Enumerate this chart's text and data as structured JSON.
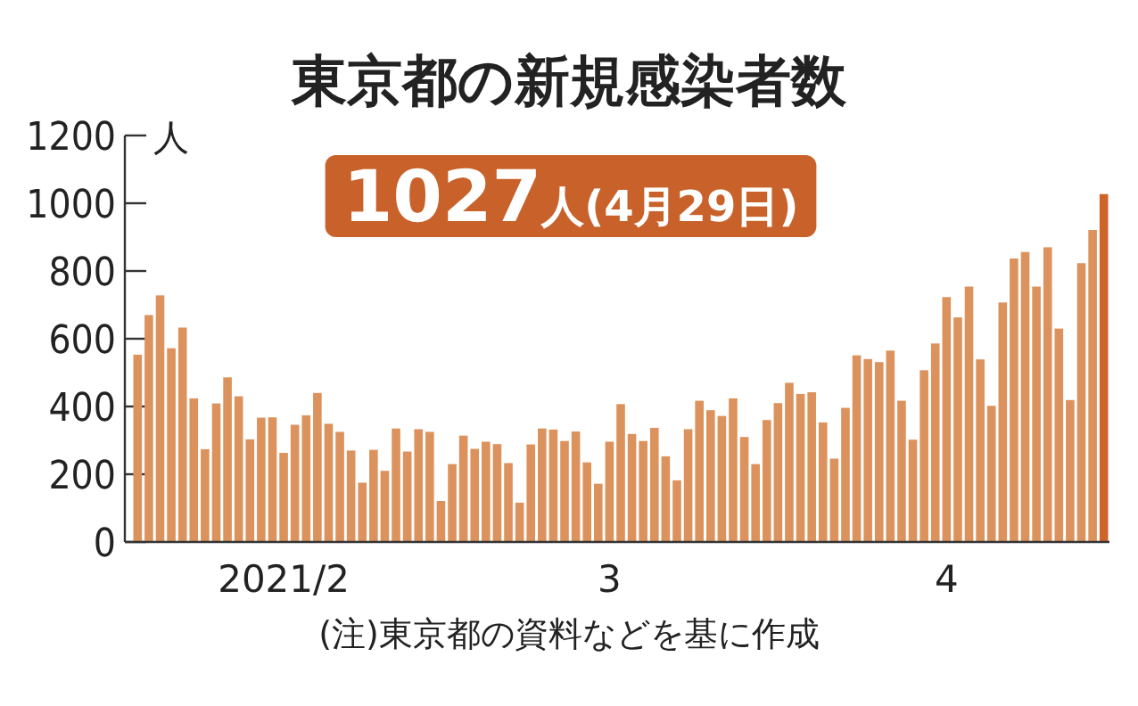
{
  "chart_data": {
    "type": "bar",
    "title": "東京都の新規感染者数",
    "ylabel": "人",
    "categories": [
      null,
      null,
      null,
      null,
      null,
      null,
      null,
      null,
      null,
      null,
      null,
      null,
      null,
      "2021/2",
      null,
      null,
      null,
      null,
      null,
      null,
      null,
      null,
      null,
      null,
      null,
      null,
      null,
      null,
      null,
      null,
      null,
      null,
      null,
      null,
      null,
      null,
      null,
      null,
      null,
      null,
      null,
      null,
      "3",
      null,
      null,
      null,
      null,
      null,
      null,
      null,
      null,
      null,
      null,
      null,
      null,
      null,
      null,
      null,
      null,
      null,
      null,
      null,
      null,
      null,
      null,
      null,
      null,
      null,
      null,
      null,
      null,
      null,
      "4",
      null,
      null,
      null,
      null,
      null,
      null,
      null,
      null,
      null,
      null,
      null,
      null,
      null,
      null
    ],
    "values": [
      553,
      670,
      728,
      572,
      633,
      424,
      274,
      409,
      486,
      430,
      303,
      367,
      368,
      263,
      346,
      374,
      440,
      349,
      325,
      270,
      175,
      272,
      210,
      335,
      267,
      333,
      325,
      121,
      230,
      314,
      275,
      296,
      289,
      233,
      116,
      288,
      335,
      332,
      298,
      326,
      235,
      172,
      296,
      407,
      319,
      298,
      337,
      253,
      182,
      333,
      417,
      389,
      372,
      424,
      310,
      230,
      360,
      410,
      470,
      437,
      442,
      353,
      246,
      396,
      551,
      540,
      531,
      565,
      417,
      302,
      507,
      586,
      723,
      663,
      754,
      539,
      402,
      707,
      837,
      856,
      754,
      870,
      630,
      419,
      823,
      921,
      1027
    ],
    "colors": [
      "#dc925c",
      "#dc925c",
      "#dc925c",
      "#dc925c",
      "#dc925c",
      "#dc925c",
      "#dc925c",
      "#dc925c",
      "#dc925c",
      "#dc925c",
      "#dc925c",
      "#dc925c",
      "#dc925c",
      "#dc925c",
      "#dc925c",
      "#dc925c",
      "#dc925c",
      "#dc925c",
      "#dc925c",
      "#dc925c",
      "#dc925c",
      "#dc925c",
      "#dc925c",
      "#dc925c",
      "#dc925c",
      "#dc925c",
      "#dc925c",
      "#dc925c",
      "#dc925c",
      "#dc925c",
      "#dc925c",
      "#dc925c",
      "#dc925c",
      "#dc925c",
      "#dc925c",
      "#dc925c",
      "#dc925c",
      "#dc925c",
      "#dc925c",
      "#dc925c",
      "#dc925c",
      "#dc925c",
      "#dc925c",
      "#dc925c",
      "#dc925c",
      "#dc925c",
      "#dc925c",
      "#dc925c",
      "#dc925c",
      "#dc925c",
      "#dc925c",
      "#dc925c",
      "#dc925c",
      "#dc925c",
      "#dc925c",
      "#dc925c",
      "#dc925c",
      "#dc925c",
      "#dc925c",
      "#dc925c",
      "#dc925c",
      "#dc925c",
      "#dc925c",
      "#dc925c",
      "#dc925c",
      "#dc925c",
      "#dc925c",
      "#dc925c",
      "#dc925c",
      "#dc925c",
      "#dc925c",
      "#dc925c",
      "#dc925c",
      "#dc925c",
      "#dc925c",
      "#dc925c",
      "#dc925c",
      "#dc925c",
      "#dc925c",
      "#dc925c",
      "#dc925c",
      "#dc925c",
      "#dc925c",
      "#dc925c",
      "#dc925c",
      "#dc925c",
      "#cf6428"
    ],
    "ylim": [
      0,
      1200
    ],
    "yticks": [
      0,
      200,
      400,
      600,
      800,
      1000,
      1200
    ],
    "annotations": [
      "1027人(4月29日)",
      "(注)東京都の資料などを基に作成"
    ]
  }
}
